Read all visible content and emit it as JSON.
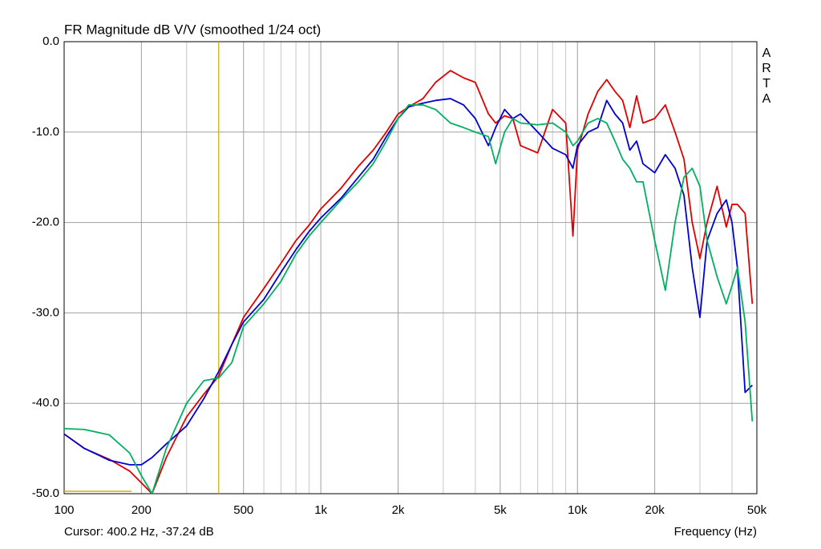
{
  "chart_data": {
    "type": "line",
    "title": "FR Magnitude dB V/V (smoothed 1/24 oct)",
    "x_label": "Frequency (Hz)",
    "watermark": "ARTA",
    "cursor": {
      "x": 400.2,
      "label": "Cursor: 400.2 Hz, -37.24 dB",
      "color": "#c8b400"
    },
    "x_scale": "log",
    "xlim": [
      100,
      50000
    ],
    "xticks": [
      100,
      {
        "value": 200,
        "label": "200"
      },
      {
        "value": 500,
        "label": "500"
      },
      {
        "value": 1000,
        "label": "1k"
      },
      {
        "value": 2000,
        "label": "2k"
      },
      {
        "value": 5000,
        "label": "5k"
      },
      {
        "value": 10000,
        "label": "10k"
      },
      {
        "value": 20000,
        "label": "20k"
      },
      {
        "value": 50000,
        "label": "50k"
      }
    ],
    "x_minor_grid": [
      300,
      400,
      600,
      700,
      800,
      900,
      3000,
      4000,
      6000,
      7000,
      8000,
      9000,
      30000,
      40000
    ],
    "ylim": [
      -50,
      0
    ],
    "yticks": [
      {
        "value": -50,
        "label": "-50.0"
      },
      {
        "value": -40,
        "label": "-40.0"
      },
      {
        "value": -30,
        "label": "-30.0"
      },
      {
        "value": -20,
        "label": "-20.0"
      },
      {
        "value": -10,
        "label": "-10.0"
      },
      {
        "value": 0,
        "label": "0.0"
      }
    ],
    "grid": true,
    "x": [
      100,
      120,
      150,
      180,
      200,
      220,
      250,
      300,
      350,
      400,
      450,
      500,
      600,
      700,
      800,
      900,
      1000,
      1200,
      1400,
      1600,
      1800,
      2000,
      2200,
      2500,
      2800,
      3200,
      3600,
      4000,
      4500,
      4800,
      5200,
      5600,
      6000,
      7000,
      8000,
      9000,
      9600,
      10000,
      11000,
      12000,
      13000,
      14000,
      15000,
      16000,
      17000,
      18000,
      20000,
      22000,
      24000,
      26000,
      28000,
      30000,
      32000,
      35000,
      38000,
      40000,
      42000,
      45000,
      48000
    ],
    "series": [
      {
        "name": "red",
        "color": "#e00000",
        "values": [
          -43.4,
          -45,
          -46.2,
          -47.5,
          -48.8,
          -50,
          -46,
          -41.5,
          -39,
          -37,
          -33.5,
          -30.5,
          -27.3,
          -24.5,
          -22,
          -20.3,
          -18.5,
          -16.2,
          -13.8,
          -12,
          -10,
          -8,
          -7.2,
          -6.3,
          -4.5,
          -3.2,
          -4,
          -4.5,
          -8,
          -9,
          -8.2,
          -8.5,
          -11.5,
          -12.3,
          -7.5,
          -9,
          -21.5,
          -12,
          -8,
          -5.5,
          -4.2,
          -5.5,
          -6.5,
          -9.5,
          -6,
          -9,
          -8.5,
          -7,
          -10,
          -13,
          -20,
          -24,
          -20,
          -16,
          -20.5,
          -18,
          -18,
          -19,
          -29
        ]
      },
      {
        "name": "blue",
        "color": "#0000d0",
        "values": [
          -43.4,
          -45,
          -46.3,
          -46.8,
          -46.8,
          -46,
          -44.5,
          -42.5,
          -39.5,
          -36.5,
          -33.5,
          -31,
          -28.5,
          -25.5,
          -23,
          -21,
          -19.5,
          -17.3,
          -15,
          -13,
          -10.5,
          -8.5,
          -7.2,
          -6.8,
          -6.5,
          -6.3,
          -7,
          -8.5,
          -11.5,
          -9.5,
          -7.5,
          -8.5,
          -8,
          -10,
          -11.8,
          -12.5,
          -14,
          -11.5,
          -10,
          -9.5,
          -6.5,
          -8,
          -9,
          -12,
          -11,
          -13.5,
          -14.5,
          -12.5,
          -14,
          -17,
          -25,
          -30.5,
          -22,
          -19,
          -17.5,
          -20,
          -25,
          -38.8,
          -38
        ]
      },
      {
        "name": "green",
        "color": "#00b060",
        "values": [
          -42.8,
          -42.9,
          -43.5,
          -45.5,
          -48,
          -50,
          -45,
          -40,
          -37.5,
          -37.2,
          -35.5,
          -31.5,
          -29,
          -26.5,
          -23.5,
          -21.5,
          -20,
          -17.5,
          -15.5,
          -13.5,
          -11,
          -8.5,
          -7,
          -7,
          -7.5,
          -9,
          -9.5,
          -10,
          -10.5,
          -13.5,
          -10,
          -8.5,
          -9,
          -9.2,
          -9,
          -10,
          -11.5,
          -11,
          -9,
          -8.5,
          -9,
          -11,
          -13,
          -14,
          -15.5,
          -15.5,
          -22,
          -27.5,
          -20,
          -15,
          -14,
          -16,
          -22,
          -26,
          -29,
          -27,
          -25,
          -31,
          -42
        ]
      }
    ]
  }
}
